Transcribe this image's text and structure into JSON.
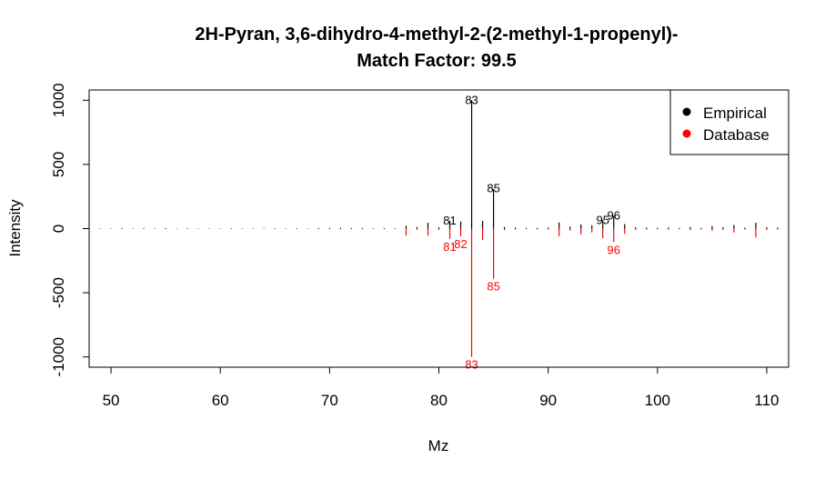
{
  "chart_data": {
    "type": "spectrum",
    "title": "2H-Pyran, 3,6-dihydro-4-methyl-2-(2-methyl-1-propenyl)-",
    "subtitle": "Match Factor: 99.5",
    "xlabel": "Mz",
    "ylabel": "Intensity",
    "xlim": [
      48,
      112
    ],
    "ylim": [
      -1080,
      1080
    ],
    "xticks": [
      50,
      60,
      70,
      80,
      90,
      100,
      110
    ],
    "yticks": [
      -1000,
      -500,
      0,
      500,
      1000
    ],
    "legend": {
      "position": "top-right",
      "entries": [
        {
          "label": "Empirical",
          "color": "#000000"
        },
        {
          "label": "Database",
          "color": "#ff0000"
        }
      ]
    },
    "series": [
      {
        "name": "Empirical",
        "color": "#000000",
        "x": [
          49,
          50,
          51,
          52,
          53,
          54,
          55,
          56,
          57,
          58,
          59,
          60,
          61,
          62,
          63,
          64,
          65,
          66,
          67,
          68,
          69,
          70,
          71,
          72,
          73,
          74,
          75,
          76,
          77,
          78,
          79,
          80,
          81,
          82,
          83,
          84,
          85,
          86,
          87,
          88,
          89,
          90,
          91,
          92,
          93,
          94,
          95,
          96,
          97,
          98,
          99,
          100,
          101,
          102,
          103,
          104,
          105,
          106,
          107,
          108,
          109,
          110,
          111
        ],
        "y": [
          2,
          2,
          3,
          2,
          3,
          2,
          4,
          2,
          3,
          2,
          2,
          2,
          3,
          2,
          2,
          2,
          3,
          2,
          3,
          2,
          4,
          5,
          6,
          4,
          5,
          3,
          4,
          3,
          22,
          12,
          45,
          10,
          60,
          55,
          1000,
          60,
          310,
          12,
          8,
          5,
          6,
          8,
          48,
          15,
          32,
          25,
          65,
          100,
          35,
          10,
          8,
          6,
          9,
          5,
          12,
          6,
          20,
          10,
          28,
          8,
          45,
          10,
          8
        ]
      },
      {
        "name": "Database",
        "color": "#ff0000",
        "x": [
          49,
          50,
          51,
          52,
          53,
          54,
          55,
          56,
          57,
          58,
          59,
          60,
          61,
          62,
          63,
          64,
          65,
          66,
          67,
          68,
          69,
          70,
          71,
          72,
          73,
          74,
          75,
          76,
          77,
          78,
          79,
          80,
          81,
          82,
          83,
          84,
          85,
          86,
          87,
          88,
          89,
          90,
          91,
          92,
          93,
          94,
          95,
          96,
          97,
          98,
          99,
          100,
          101,
          102,
          103,
          104,
          105,
          106,
          107,
          108,
          109,
          110,
          111
        ],
        "y": [
          -2,
          -2,
          -3,
          -2,
          -3,
          -2,
          -4,
          -2,
          -3,
          -2,
          -2,
          -2,
          -3,
          -2,
          -2,
          -2,
          -3,
          -2,
          -3,
          -2,
          -4,
          -5,
          -6,
          -4,
          -5,
          -3,
          -4,
          -3,
          -55,
          -10,
          -55,
          -10,
          -80,
          -60,
          -1000,
          -90,
          -390,
          -12,
          -8,
          -5,
          -6,
          -8,
          -60,
          -15,
          -45,
          -30,
          -75,
          -105,
          -40,
          -10,
          -8,
          -6,
          -9,
          -5,
          -12,
          -6,
          -18,
          -10,
          -30,
          -8,
          -70,
          -10,
          -8
        ]
      }
    ],
    "annotations": [
      {
        "text": "83",
        "x": 83,
        "y": 1000,
        "color": "#000000"
      },
      {
        "text": "85",
        "x": 85,
        "y": 310,
        "color": "#000000"
      },
      {
        "text": "81",
        "x": 81,
        "y": 60,
        "color": "#000000"
      },
      {
        "text": "95",
        "x": 95,
        "y": 65,
        "color": "#000000"
      },
      {
        "text": "96",
        "x": 96,
        "y": 100,
        "color": "#000000"
      },
      {
        "text": "83",
        "x": 83,
        "y": -1000,
        "color": "#ff0000"
      },
      {
        "text": "85",
        "x": 85,
        "y": -390,
        "color": "#ff0000"
      },
      {
        "text": "81",
        "x": 81,
        "y": -80,
        "color": "#ff0000"
      },
      {
        "text": "82",
        "x": 82,
        "y": -60,
        "color": "#ff0000"
      },
      {
        "text": "96",
        "x": 96,
        "y": -105,
        "color": "#ff0000"
      }
    ]
  }
}
